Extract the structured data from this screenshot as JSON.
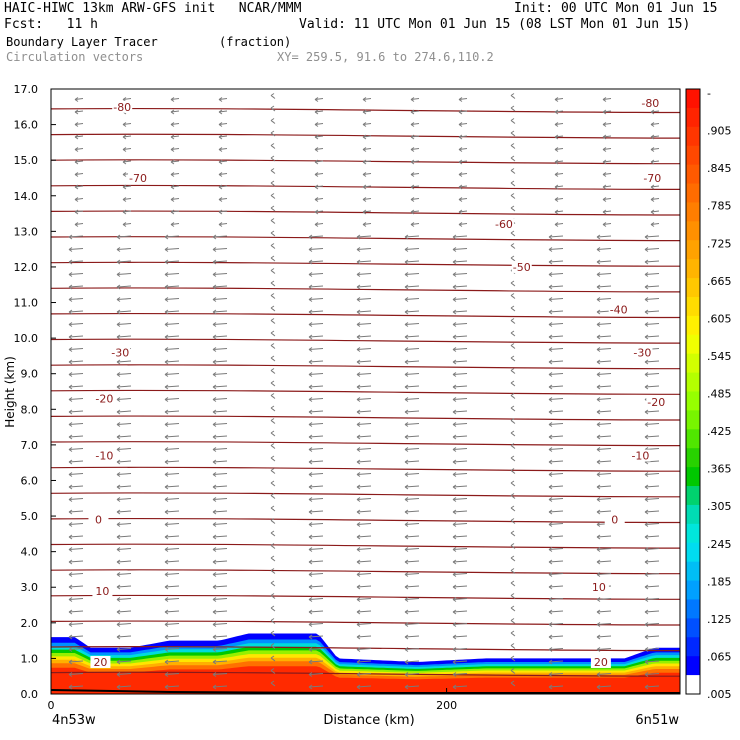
{
  "header": {
    "model_title": "HAIC-HIWC 13km ARW-GFS init   NCAR/MMM",
    "init": "Init: 00 UTC Mon 01 Jun 15",
    "fcst": "Fcst:   11 h",
    "valid": "Valid: 11 UTC Mon 01 Jun 15 (08 LST Mon 01 Jun 15)",
    "field_name": "Boundary Layer Tracer",
    "field_unit": "(fraction)",
    "overlay": "Circulation vectors",
    "xy": "XY= 259.5, 91.6 to 274.6,110.2"
  },
  "colors": {
    "frame": "#000000",
    "contour": "#8b1a1a",
    "vector": "#7a7a7a",
    "ground": "#000000"
  },
  "chart_data": {
    "type": "heatmap",
    "xlabel": "Distance (km)",
    "ylabel": "Height (km)",
    "xlim": [
      0,
      318
    ],
    "ylim": [
      0,
      17
    ],
    "xticks": [
      {
        "v": 0,
        "label": "0"
      },
      {
        "v": 200,
        "label": "200"
      }
    ],
    "yticks": [
      "0.0",
      "1.0",
      "2.0",
      "3.0",
      "4.0",
      "5.0",
      "6.0",
      "7.0",
      "8.0",
      "9.0",
      "10.0",
      "11.0",
      "12.0",
      "13.0",
      "14.0",
      "15.0",
      "16.0",
      "17.0"
    ],
    "x_left_label": "4n53w",
    "x_right_label": "6n51w",
    "colorbar": {
      "labels": [
        "-",
        ".905",
        ".845",
        ".785",
        ".725",
        ".665",
        ".605",
        ".545",
        ".485",
        ".425",
        ".365",
        ".305",
        ".245",
        ".185",
        ".125",
        ".065",
        ".005"
      ],
      "colors": [
        "#ff1200",
        "#ff2400",
        "#ff3600",
        "#ff4800",
        "#ff5a00",
        "#ff6c00",
        "#ff7e00",
        "#ff9000",
        "#ffa200",
        "#ffb400",
        "#ffc800",
        "#ffdc00",
        "#fff000",
        "#f0ff00",
        "#d2ff00",
        "#b4ff00",
        "#96ff00",
        "#78f500",
        "#50e600",
        "#28d200",
        "#00c800",
        "#00d26e",
        "#00dcb4",
        "#00e6dc",
        "#00dcf0",
        "#00bef5",
        "#00a0ff",
        "#0078ff",
        "#0050ff",
        "#0028ff",
        "#0000ff",
        "#ffffff"
      ]
    },
    "tracer_top_km": [
      {
        "x": 0,
        "h": 1.6
      },
      {
        "x": 12,
        "h": 1.6
      },
      {
        "x": 20,
        "h": 1.3
      },
      {
        "x": 40,
        "h": 1.3
      },
      {
        "x": 60,
        "h": 1.5
      },
      {
        "x": 85,
        "h": 1.5
      },
      {
        "x": 100,
        "h": 1.7
      },
      {
        "x": 135,
        "h": 1.7
      },
      {
        "x": 145,
        "h": 1.0
      },
      {
        "x": 185,
        "h": 0.9
      },
      {
        "x": 220,
        "h": 1.0
      },
      {
        "x": 290,
        "h": 1.0
      },
      {
        "x": 305,
        "h": 1.3
      },
      {
        "x": 318,
        "h": 1.3
      }
    ],
    "contour_labels": [
      {
        "label": "-80",
        "x": 36,
        "y": 16.5
      },
      {
        "label": "-80",
        "x": 303,
        "y": 16.6
      },
      {
        "label": "-70",
        "x": 44,
        "y": 14.5
      },
      {
        "label": "-70",
        "x": 304,
        "y": 14.5
      },
      {
        "label": "-60",
        "x": 229,
        "y": 13.2
      },
      {
        "label": "-50",
        "x": 238,
        "y": 12.0
      },
      {
        "label": "-40",
        "x": 287,
        "y": 10.8
      },
      {
        "label": "-30",
        "x": 35,
        "y": 9.6
      },
      {
        "label": "-30",
        "x": 299,
        "y": 9.6
      },
      {
        "label": "-20",
        "x": 27,
        "y": 8.3
      },
      {
        "label": "-20",
        "x": 306,
        "y": 8.2
      },
      {
        "label": "-10",
        "x": 27,
        "y": 6.7
      },
      {
        "label": "-10",
        "x": 298,
        "y": 6.7
      },
      {
        "label": "0",
        "x": 24,
        "y": 4.9
      },
      {
        "label": "0",
        "x": 285,
        "y": 4.9
      },
      {
        "label": "10",
        "x": 26,
        "y": 2.9
      },
      {
        "label": "10",
        "x": 277,
        "y": 3.0
      },
      {
        "label": "20",
        "x": 25,
        "y": 0.9
      },
      {
        "label": "20",
        "x": 278,
        "y": 0.9
      }
    ]
  }
}
